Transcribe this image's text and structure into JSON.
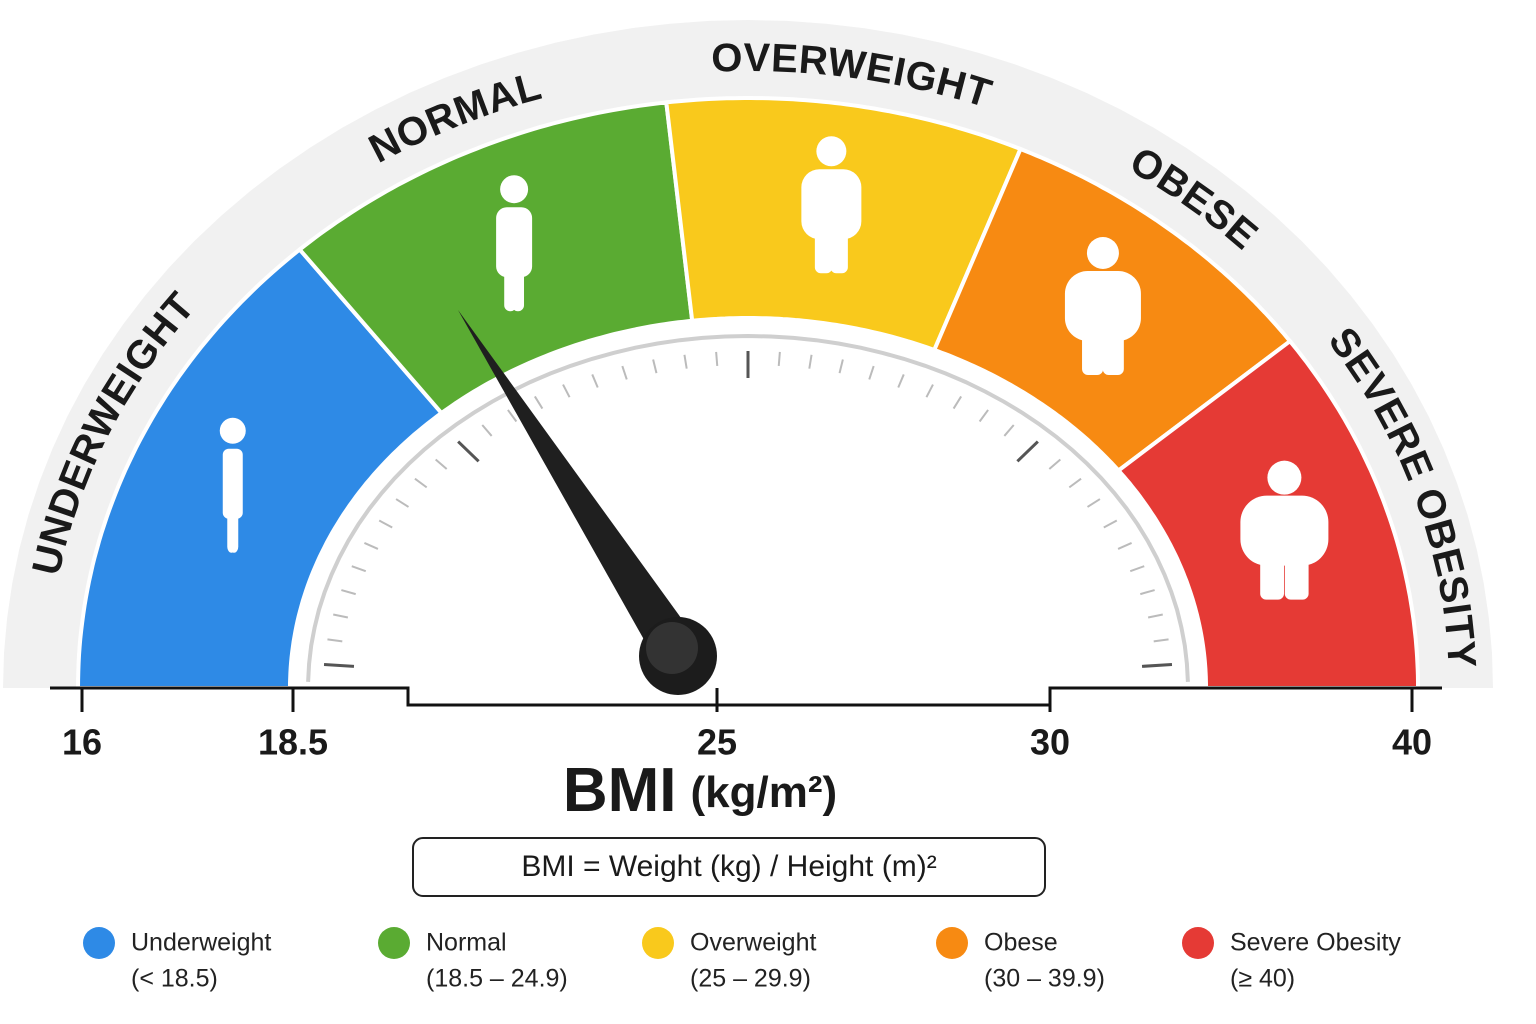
{
  "segments": [
    {
      "label": "UNDERWEIGHT",
      "color": "#2e8ae6",
      "text_color": "#1d6cc4"
    },
    {
      "label": "NORMAL",
      "color": "#5aab32",
      "text_color": "#3a8c27"
    },
    {
      "label": "OVERWEIGHT",
      "color": "#f9c91c",
      "text_color": "#eaa514"
    },
    {
      "label": "OBESE",
      "color": "#f78a12",
      "text_color": "#ef7a17"
    },
    {
      "label": "SEVERE OBESITY",
      "color": "#e53a35",
      "text_color": "#d8262b"
    }
  ],
  "scale_labels": [
    "16",
    "18.5",
    "25",
    "30",
    "40"
  ],
  "axis_title": "BMI",
  "axis_unit": "(kg/m²)",
  "formula": "BMI = Weight (kg) / Height (m)²",
  "legend": [
    {
      "name": "Underweight",
      "range": "(< 18.5)",
      "color": "#2e8ae6"
    },
    {
      "name": "Normal",
      "range": "(18.5 – 24.9)",
      "color": "#5aab32"
    },
    {
      "name": "Overweight",
      "range": "(25 – 29.9)",
      "color": "#f9c91c"
    },
    {
      "name": "Obese",
      "range": "(30 – 39.9)",
      "color": "#f78a12"
    },
    {
      "name": "Severe Obesity",
      "range": "(≥ 40)",
      "color": "#e53a35"
    }
  ]
}
